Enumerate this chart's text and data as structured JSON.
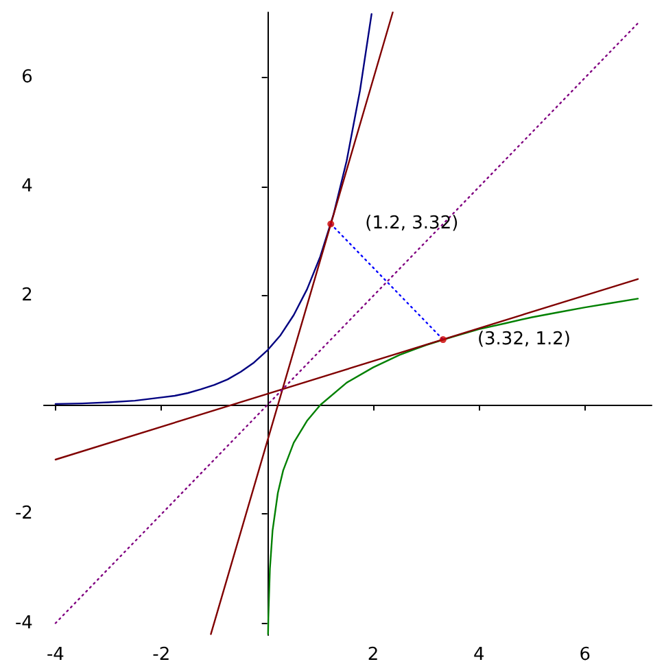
{
  "chart_data": {
    "type": "line",
    "xlim": [
      -4.22,
      7.26
    ],
    "ylim": [
      -4.22,
      7.2
    ],
    "xticks": [
      -4,
      -2,
      2,
      4,
      6
    ],
    "yticks": [
      -4,
      -2,
      2,
      4,
      6
    ],
    "grid": false,
    "series": [
      {
        "color": "#000080",
        "line_style": "solid",
        "marker": "none",
        "x": [
          -4,
          -3.5,
          -3,
          -2.5,
          -2,
          -1.75,
          -1.5,
          -1.25,
          -1,
          -0.75,
          -0.5,
          -0.25,
          0,
          0.25,
          0.5,
          0.75,
          1,
          1.25,
          1.5,
          1.75,
          1.97
        ],
        "values": [
          0.02,
          0.03,
          0.05,
          0.08,
          0.14,
          0.17,
          0.22,
          0.29,
          0.37,
          0.47,
          0.61,
          0.78,
          1,
          1.28,
          1.65,
          2.12,
          2.72,
          3.49,
          4.48,
          5.76,
          7.17
        ]
      },
      {
        "color": "#008000",
        "line_style": "solid",
        "marker": "none",
        "x": [
          0.015,
          0.02,
          0.05,
          0.1,
          0.2,
          0.3,
          0.5,
          0.75,
          1,
          1.5,
          2,
          2.5,
          3,
          3.5,
          4,
          4.5,
          5,
          5.5,
          6,
          6.5,
          7
        ],
        "values": [
          -4.2,
          -3.91,
          -3,
          -2.3,
          -1.61,
          -1.2,
          -0.69,
          -0.29,
          0,
          0.41,
          0.69,
          0.92,
          1.1,
          1.25,
          1.39,
          1.5,
          1.61,
          1.7,
          1.79,
          1.87,
          1.95
        ]
      },
      {
        "color": "#800000",
        "line_style": "solid",
        "marker": "none",
        "x": [
          -1.065,
          2.37
        ],
        "values": [
          -4.2,
          7.2
        ]
      },
      {
        "color": "#800000",
        "line_style": "solid",
        "marker": "none",
        "x": [
          -4,
          7
        ],
        "values": [
          -1.0,
          2.31
        ]
      },
      {
        "color": "#800080",
        "line_style": "dotted",
        "marker": "none",
        "x": [
          -4,
          7
        ],
        "values": [
          -4,
          7
        ]
      },
      {
        "color": "#0000ff",
        "line_style": "dotted",
        "marker": "none",
        "x": [
          1.2,
          3.32
        ],
        "values": [
          3.32,
          1.2
        ]
      },
      {
        "type": "scatter",
        "color": "#cc0000",
        "marker": "circle",
        "x": [
          1.2,
          3.32
        ],
        "values": [
          3.32,
          1.2
        ]
      }
    ],
    "annotations": [
      {
        "text": "(1.2, 3.32)",
        "x": 1.2,
        "y": 3.32
      },
      {
        "text": "(3.32, 1.2)",
        "x": 3.32,
        "y": 1.2
      }
    ]
  }
}
